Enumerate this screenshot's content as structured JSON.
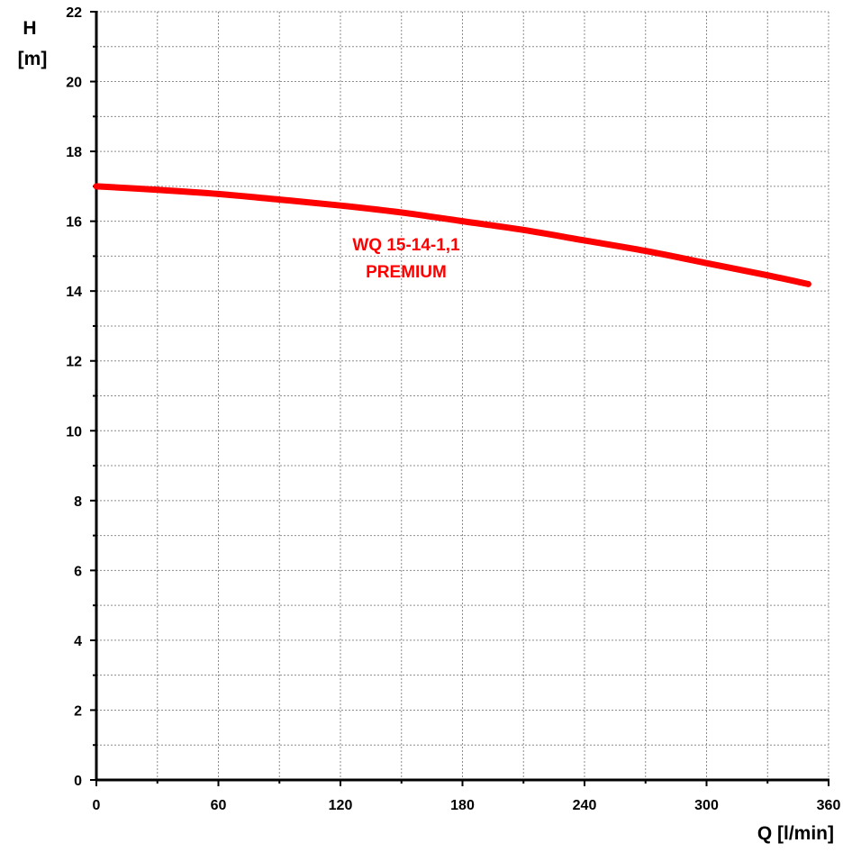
{
  "chart_data": {
    "type": "line",
    "xlabel": "Q [l/min]",
    "ylabel_line1": "H",
    "ylabel_line2": "[m]",
    "xlim": [
      0,
      360
    ],
    "ylim": [
      0,
      22
    ],
    "x_ticks": [
      0,
      60,
      120,
      180,
      240,
      300,
      360
    ],
    "y_ticks": [
      0,
      2,
      4,
      6,
      8,
      10,
      12,
      14,
      16,
      18,
      20,
      22
    ],
    "x_minor_step": 30,
    "y_minor_step": 1,
    "grid": true,
    "series": [
      {
        "name": "WQ 15-14-1,1 PREMIUM",
        "color": "#ff0000",
        "x": [
          0,
          30,
          60,
          90,
          120,
          150,
          180,
          210,
          240,
          270,
          300,
          330,
          350
        ],
        "y": [
          17.0,
          16.9,
          16.78,
          16.62,
          16.45,
          16.25,
          16.0,
          15.75,
          15.45,
          15.15,
          14.8,
          14.45,
          14.2
        ]
      }
    ],
    "annotations": [
      {
        "line1": "WQ 15-14-1,1",
        "line2": "PREMIUM",
        "color": "#ff0000"
      }
    ]
  }
}
